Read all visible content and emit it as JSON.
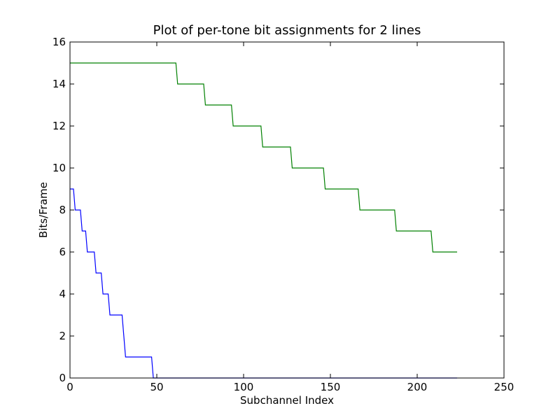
{
  "chart_data": {
    "type": "line",
    "title": "Plot of per-tone bit assignments for 2 lines",
    "xlabel": "Subchannel Index",
    "ylabel": "Bits/Frame",
    "xlim": [
      0,
      250
    ],
    "ylim": [
      0,
      16
    ],
    "xticks": [
      0,
      50,
      100,
      150,
      200,
      250
    ],
    "yticks": [
      0,
      2,
      4,
      6,
      8,
      10,
      12,
      14,
      16
    ],
    "grid": false,
    "line_style": "steps",
    "series": [
      {
        "color": "#0000ff",
        "x": [
          0,
          2,
          3,
          6,
          7,
          9,
          10,
          14,
          15,
          18,
          19,
          22,
          23,
          30,
          32,
          47,
          48,
          223
        ],
        "y": [
          9,
          9,
          8,
          8,
          7,
          7,
          6,
          6,
          5,
          5,
          4,
          4,
          3,
          3,
          1,
          1,
          0,
          0
        ]
      },
      {
        "color": "#008000",
        "x": [
          0,
          61,
          62,
          77,
          78,
          93,
          94,
          110,
          111,
          127,
          128,
          146,
          147,
          166,
          167,
          187,
          188,
          208,
          209,
          223
        ],
        "y": [
          15,
          15,
          14,
          14,
          13,
          13,
          12,
          12,
          11,
          11,
          10,
          10,
          9,
          9,
          8,
          8,
          7,
          7,
          6,
          6
        ]
      }
    ]
  }
}
